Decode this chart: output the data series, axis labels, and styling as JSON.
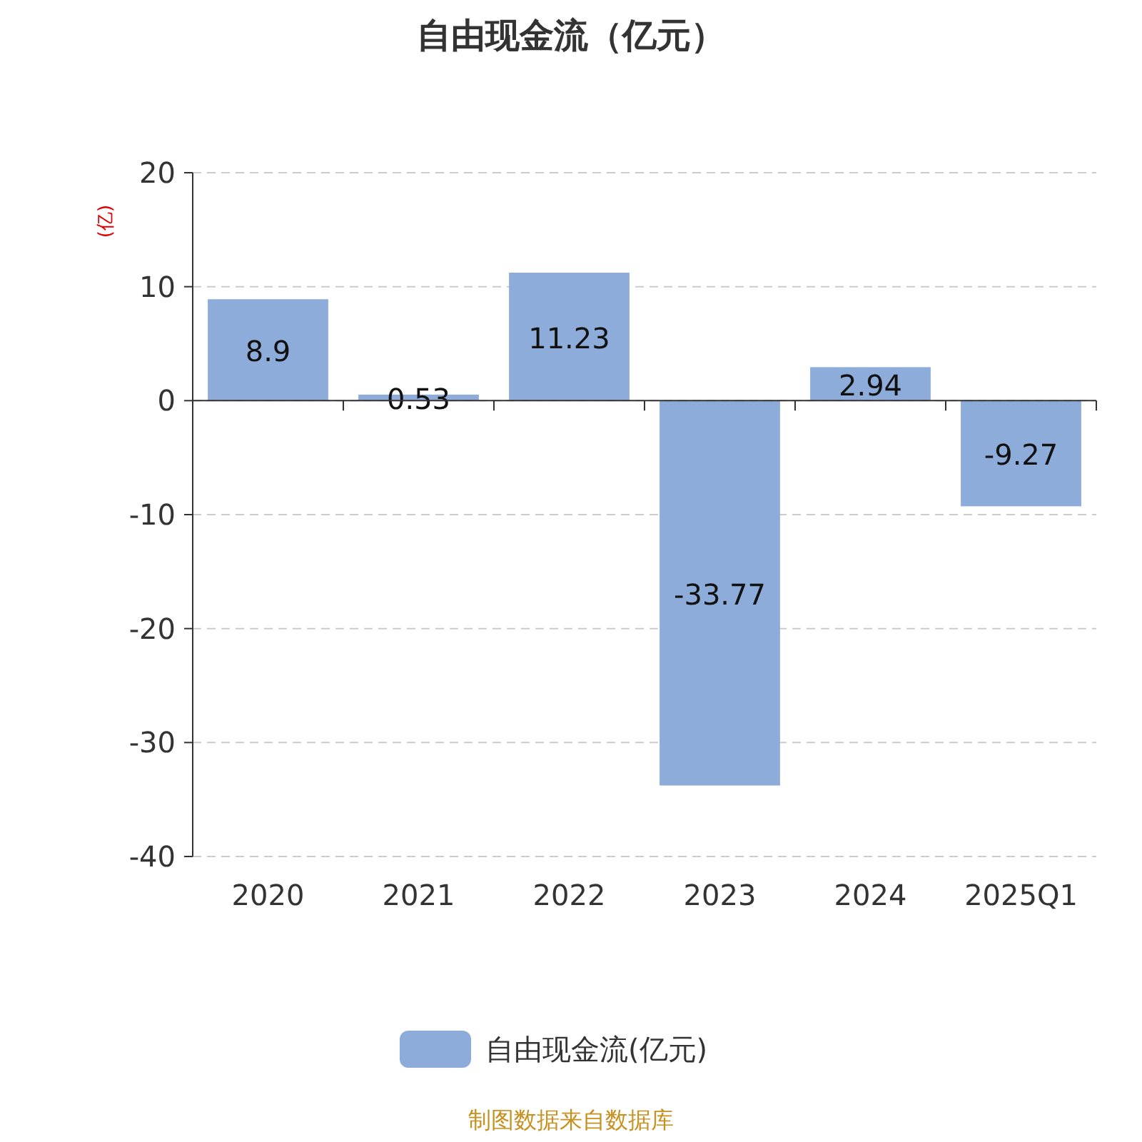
{
  "chart_data": {
    "type": "bar",
    "title": "自由现金流（亿元）",
    "ylabel": "(亿)",
    "categories": [
      "2020",
      "2021",
      "2022",
      "2023",
      "2024",
      "2025Q1"
    ],
    "series": [
      {
        "name": "自由现金流(亿元)",
        "color": "#8eacd9",
        "values": [
          8.9,
          0.53,
          11.23,
          -33.77,
          2.94,
          -9.27
        ]
      }
    ],
    "ylim": [
      -40,
      20
    ],
    "yticks": [
      -40,
      -30,
      -20,
      -10,
      0,
      10,
      20
    ],
    "grid": "y",
    "legend": "bottom",
    "data_labels": true,
    "annotations": [
      "制图数据来自数据库"
    ]
  }
}
